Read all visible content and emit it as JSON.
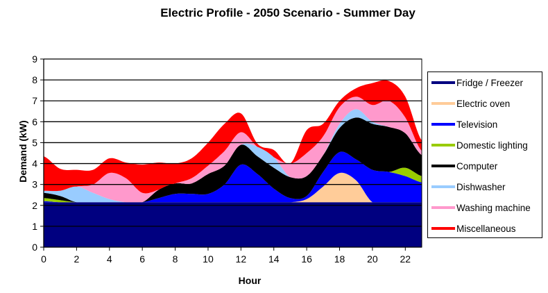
{
  "chart_data": {
    "type": "area",
    "stacked": true,
    "title": "Electric Profile - 2050 Scenario - Summer Day",
    "xlabel": "Hour",
    "ylabel": "Demand (kW)",
    "xlim": [
      0,
      23
    ],
    "ylim": [
      0,
      9
    ],
    "x_ticks": [
      "0",
      "2",
      "4",
      "6",
      "8",
      "10",
      "12",
      "14",
      "16",
      "18",
      "20",
      "22"
    ],
    "y_ticks": [
      "0",
      "1",
      "2",
      "3",
      "4",
      "5",
      "6",
      "7",
      "8",
      "9"
    ],
    "grid": "horizontal",
    "legend_position": "right",
    "x": [
      0,
      1,
      2,
      3,
      4,
      5,
      6,
      7,
      8,
      9,
      10,
      11,
      12,
      13,
      14,
      15,
      16,
      17,
      18,
      19,
      20,
      21,
      22,
      23
    ],
    "series": [
      {
        "name": "Fridge / Freezer",
        "color": "#000080",
        "values": [
          2.15,
          2.15,
          2.15,
          2.15,
          2.15,
          2.15,
          2.15,
          2.15,
          2.15,
          2.15,
          2.15,
          2.15,
          2.15,
          2.15,
          2.15,
          2.15,
          2.15,
          2.15,
          2.15,
          2.15,
          2.15,
          2.15,
          2.15,
          2.15
        ]
      },
      {
        "name": "Electric oven",
        "color": "#FFCC99",
        "values": [
          0,
          0,
          0,
          0,
          0,
          0,
          0,
          0,
          0,
          0,
          0,
          0,
          0,
          0,
          0,
          0,
          0.15,
          0.75,
          1.4,
          1.05,
          0,
          0,
          0,
          0
        ]
      },
      {
        "name": "Television",
        "color": "#0000FF",
        "values": [
          0.05,
          0,
          0,
          0,
          0,
          0,
          0,
          0.2,
          0.4,
          0.4,
          0.4,
          0.85,
          1.8,
          1.35,
          0.65,
          0.2,
          0.15,
          0.7,
          1.0,
          1.0,
          1.55,
          1.45,
          1.25,
          0.95
        ]
      },
      {
        "name": "Domestic lighting",
        "color": "#99CC00",
        "values": [
          0.15,
          0.1,
          0,
          0,
          0,
          0,
          0,
          0,
          0,
          0,
          0,
          0,
          0,
          0,
          0,
          0,
          0,
          0,
          0,
          0,
          0,
          0,
          0.4,
          0.3
        ]
      },
      {
        "name": "Computer",
        "color": "#000000",
        "values": [
          0.25,
          0.2,
          0,
          0,
          0,
          0,
          0,
          0.4,
          0.5,
          0.5,
          0.95,
          0.9,
          0.95,
          0.85,
          1.0,
          1.0,
          0.95,
          0.8,
          1.15,
          2.0,
          2.2,
          2.15,
          1.65,
          1.0
        ]
      },
      {
        "name": "Dishwasher",
        "color": "#99CCFF",
        "values": [
          0.1,
          0.25,
          0.75,
          0.45,
          0.15,
          0,
          0,
          0,
          0,
          0,
          0,
          0,
          0,
          0.45,
          0.5,
          0,
          0,
          0,
          0.2,
          0.4,
          0.1,
          0,
          0,
          0
        ]
      },
      {
        "name": "Washing machine",
        "color": "#FF99CC",
        "values": [
          0,
          0,
          0,
          0.4,
          1.25,
          1.15,
          0.45,
          0,
          0,
          0.25,
          0.4,
          0.7,
          0.6,
          0,
          0,
          0.65,
          1.1,
          0.9,
          0.8,
          0.6,
          0.8,
          1.25,
          0.75,
          0.2
        ]
      },
      {
        "name": "Miscellaneous",
        "color": "#FF0000",
        "values": [
          1.65,
          1.05,
          0.8,
          0.7,
          0.7,
          0.75,
          1.35,
          1.3,
          0.95,
          0.95,
          1.1,
          1.3,
          0.9,
          0.15,
          0.35,
          0,
          1.1,
          0.6,
          0.3,
          0.4,
          1.05,
          0.95,
          1.0,
          0.5
        ]
      }
    ]
  }
}
